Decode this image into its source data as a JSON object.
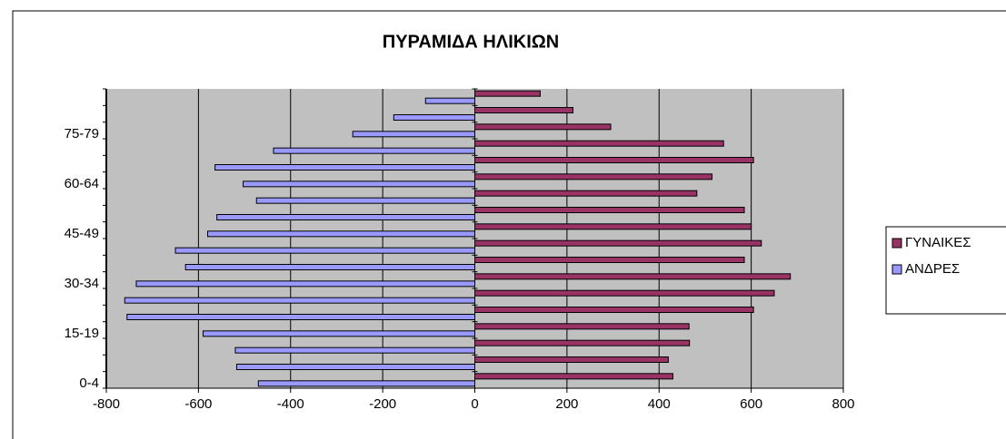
{
  "chart_data": {
    "type": "bar",
    "orientation": "horizontal",
    "title": "ΠΥΡΑΜΙΔΑ ΗΛΙΚΙΩΝ",
    "categories": [
      "0-4",
      null,
      null,
      "15-19",
      null,
      null,
      "30-34",
      null,
      null,
      "45-49",
      null,
      null,
      "60-64",
      null,
      null,
      "75-79",
      null,
      null
    ],
    "series": [
      {
        "name": "ΓΥΝΑΙΚΕΣ",
        "color": "#993366",
        "values": [
          430,
          420,
          466,
          465,
          605,
          650,
          685,
          585,
          622,
          600,
          585,
          482,
          515,
          605,
          540,
          295,
          213,
          142
        ]
      },
      {
        "name": "ΑΝΔΡΕΣ",
        "color": "#9999ff",
        "values": [
          -470,
          -517,
          -520,
          -590,
          -755,
          -760,
          -735,
          -628,
          -650,
          -580,
          -560,
          -474,
          -503,
          -564,
          -437,
          -265,
          -176,
          -107
        ]
      }
    ],
    "xlim": [
      -800,
      800
    ],
    "xticks": [
      -800,
      -600,
      -400,
      -200,
      0,
      200,
      400,
      600,
      800
    ],
    "grid": true,
    "legend": "right"
  }
}
